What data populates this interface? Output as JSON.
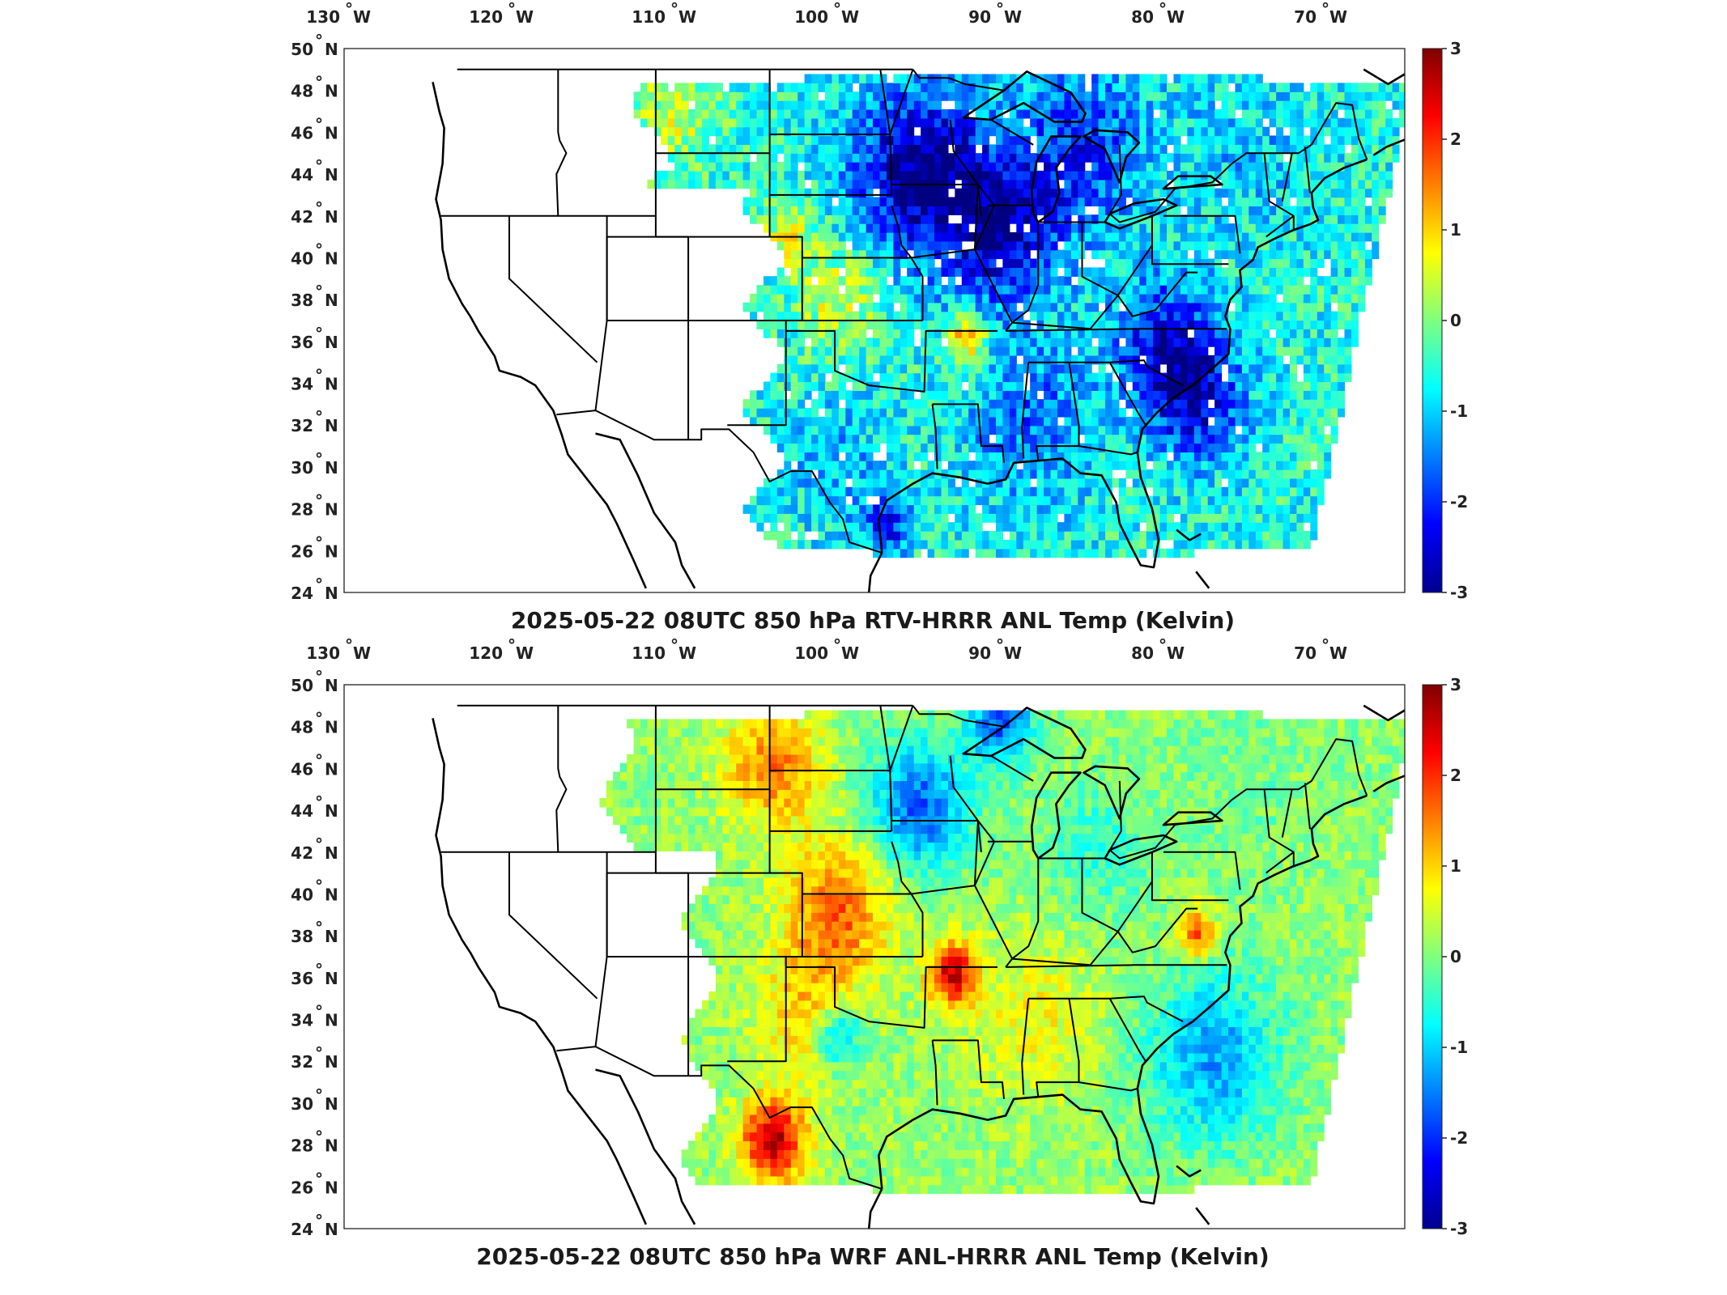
{
  "panels": [
    {
      "title": "2025-05-22 08UTC 850 hPa RTV-HRRR ANL Temp (Kelvin)",
      "variant": "rtv"
    },
    {
      "title": "2025-05-22 08UTC 850 hPa WRF ANL-HRRR ANL Temp (Kelvin)",
      "variant": "wrf"
    }
  ],
  "lon_ticks": [
    {
      "value": -130,
      "label": "130",
      "hemi": "W"
    },
    {
      "value": -120,
      "label": "120",
      "hemi": "W"
    },
    {
      "value": -110,
      "label": "110",
      "hemi": "W"
    },
    {
      "value": -100,
      "label": "100",
      "hemi": "W"
    },
    {
      "value": -90,
      "label": "90",
      "hemi": "W"
    },
    {
      "value": -80,
      "label": "80",
      "hemi": "W"
    },
    {
      "value": -70,
      "label": "70",
      "hemi": "W"
    }
  ],
  "lat_ticks": [
    {
      "value": 50,
      "label": "50",
      "hemi": "N"
    },
    {
      "value": 48,
      "label": "48",
      "hemi": "N"
    },
    {
      "value": 46,
      "label": "46",
      "hemi": "N"
    },
    {
      "value": 44,
      "label": "44",
      "hemi": "N"
    },
    {
      "value": 42,
      "label": "42",
      "hemi": "N"
    },
    {
      "value": 40,
      "label": "40",
      "hemi": "N"
    },
    {
      "value": 38,
      "label": "38",
      "hemi": "N"
    },
    {
      "value": 36,
      "label": "36",
      "hemi": "N"
    },
    {
      "value": 34,
      "label": "34",
      "hemi": "N"
    },
    {
      "value": 32,
      "label": "32",
      "hemi": "N"
    },
    {
      "value": 30,
      "label": "30",
      "hemi": "N"
    },
    {
      "value": 28,
      "label": "28",
      "hemi": "N"
    },
    {
      "value": 26,
      "label": "26",
      "hemi": "N"
    },
    {
      "value": 24,
      "label": "24",
      "hemi": "N"
    }
  ],
  "colorbar": {
    "min": -3,
    "max": 3,
    "ticks": [
      3,
      2,
      1,
      0,
      -1,
      -2,
      -3
    ],
    "colormap": "jet",
    "colors": [
      "#00008f",
      "#0000ff",
      "#00ffff",
      "#ffff00",
      "#ff0000",
      "#800000"
    ]
  },
  "degree_symbol": "°"
}
